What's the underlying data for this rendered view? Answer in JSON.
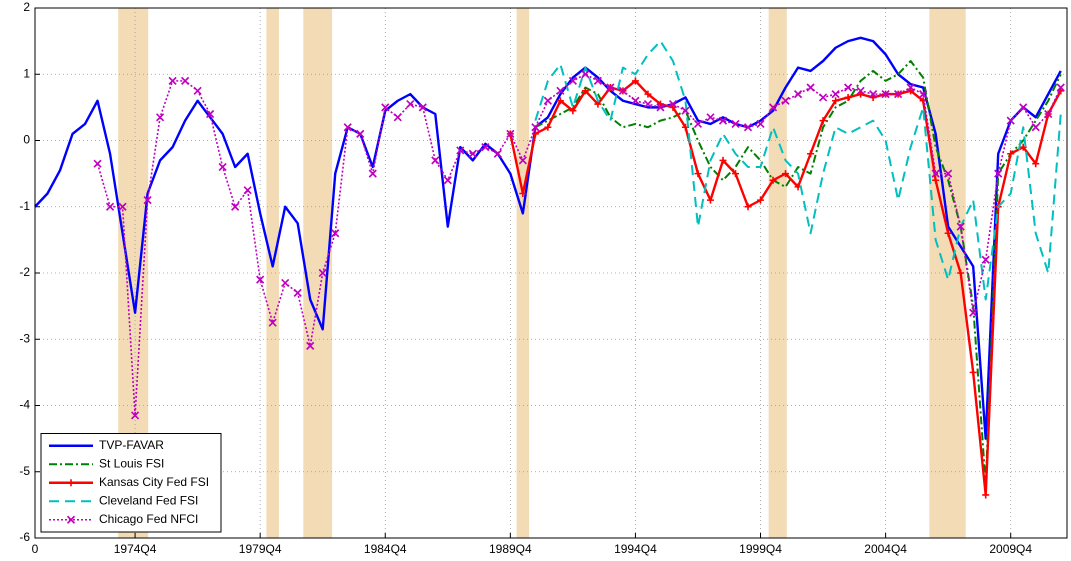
{
  "chart_data": {
    "type": "line",
    "x": [
      0,
      2,
      4,
      6,
      8,
      10,
      12,
      14,
      16,
      18,
      20,
      22,
      24,
      26,
      28,
      30,
      32,
      34,
      36,
      38,
      40,
      42,
      44,
      46,
      48,
      50,
      52,
      54,
      56,
      58,
      60,
      62,
      64,
      66,
      68,
      70,
      72,
      74,
      76,
      78,
      80,
      82,
      84,
      86,
      88,
      90,
      92,
      94,
      96,
      98,
      100,
      102,
      104,
      106,
      108,
      110,
      112,
      114,
      116,
      118,
      120,
      122,
      124,
      126,
      128,
      130,
      132,
      134,
      136,
      138,
      140,
      142,
      144,
      146,
      148,
      150,
      152,
      154,
      156,
      158,
      160,
      162,
      164
    ],
    "series": [
      {
        "name": "TVP-FAVAR",
        "color": "#0000ff",
        "linestyle": "solid",
        "marker": "none",
        "values": [
          -1.0,
          -0.8,
          -0.45,
          0.1,
          0.25,
          0.6,
          -0.2,
          -1.4,
          -2.6,
          -0.8,
          -0.3,
          -0.1,
          0.3,
          0.6,
          0.35,
          0.1,
          -0.4,
          -0.2,
          -1.1,
          -1.9,
          -1.0,
          -1.25,
          -2.4,
          -2.85,
          -0.5,
          0.2,
          0.1,
          -0.4,
          0.45,
          0.6,
          0.7,
          0.5,
          0.4,
          -1.3,
          -0.1,
          -0.3,
          -0.05,
          -0.2,
          -0.5,
          -1.1,
          0.2,
          0.35,
          0.7,
          0.95,
          1.1,
          0.95,
          0.75,
          0.6,
          0.55,
          0.5,
          0.5,
          0.55,
          0.65,
          0.3,
          0.25,
          0.35,
          0.25,
          0.2,
          0.3,
          0.45,
          0.8,
          1.1,
          1.05,
          1.2,
          1.4,
          1.5,
          1.55,
          1.5,
          1.3,
          1.0,
          0.85,
          0.8,
          0.1,
          -1.3,
          -1.6,
          -1.9,
          -4.5,
          -0.2,
          0.3,
          0.5,
          0.35,
          0.7,
          1.05
        ]
      },
      {
        "name": "St Louis FSI",
        "color": "#008000",
        "linestyle": "dashdot",
        "marker": "none",
        "values": [
          null,
          null,
          null,
          null,
          null,
          null,
          null,
          null,
          null,
          null,
          null,
          null,
          null,
          null,
          null,
          null,
          null,
          null,
          null,
          null,
          null,
          null,
          null,
          null,
          null,
          null,
          null,
          null,
          null,
          null,
          null,
          null,
          null,
          null,
          null,
          null,
          null,
          null,
          null,
          null,
          0.2,
          0.3,
          0.4,
          0.5,
          0.8,
          0.7,
          0.35,
          0.2,
          0.25,
          0.2,
          0.3,
          0.35,
          0.45,
          0.0,
          -0.4,
          -0.6,
          -0.4,
          -0.1,
          -0.3,
          -0.6,
          -0.7,
          -0.4,
          -0.5,
          0.2,
          0.5,
          0.6,
          0.9,
          1.05,
          0.9,
          1.0,
          1.2,
          0.95,
          -0.1,
          -0.6,
          -1.3,
          -2.5,
          -5.2,
          -0.5,
          -0.2,
          0.0,
          0.3,
          0.6,
          1.0
        ]
      },
      {
        "name": "Kansas City Fed FSI",
        "color": "#ff0000",
        "linestyle": "solid",
        "marker": "plus",
        "values": [
          null,
          null,
          null,
          null,
          null,
          null,
          null,
          null,
          null,
          null,
          null,
          null,
          null,
          null,
          null,
          null,
          null,
          null,
          null,
          null,
          null,
          null,
          null,
          null,
          null,
          null,
          null,
          null,
          null,
          null,
          null,
          null,
          null,
          null,
          null,
          null,
          null,
          null,
          0.1,
          -0.8,
          0.1,
          0.2,
          0.6,
          0.45,
          0.75,
          0.55,
          0.8,
          0.75,
          0.9,
          0.7,
          0.55,
          0.5,
          0.2,
          -0.5,
          -0.9,
          -0.3,
          -0.5,
          -1.0,
          -0.9,
          -0.6,
          -0.5,
          -0.7,
          -0.2,
          0.3,
          0.6,
          0.65,
          0.7,
          0.65,
          0.7,
          0.7,
          0.75,
          0.6,
          -0.6,
          -1.4,
          -2.0,
          -3.5,
          -5.35,
          -1.0,
          -0.2,
          -0.1,
          -0.35,
          0.4,
          0.75
        ]
      },
      {
        "name": "Cleveland Fed FSI",
        "color": "#00bfbf",
        "linestyle": "dashed",
        "marker": "none",
        "values": [
          null,
          null,
          null,
          null,
          null,
          null,
          null,
          null,
          null,
          null,
          null,
          null,
          null,
          null,
          null,
          null,
          null,
          null,
          null,
          null,
          null,
          null,
          null,
          null,
          null,
          null,
          null,
          null,
          null,
          null,
          null,
          null,
          null,
          null,
          null,
          null,
          null,
          null,
          null,
          null,
          0.3,
          0.9,
          1.15,
          0.5,
          1.1,
          0.6,
          0.3,
          1.1,
          1.0,
          1.3,
          1.5,
          1.2,
          0.6,
          -1.3,
          -0.3,
          0.1,
          -0.2,
          -0.4,
          -0.4,
          0.2,
          -0.3,
          -0.5,
          -1.4,
          -0.5,
          0.2,
          0.1,
          0.2,
          0.3,
          0.0,
          -0.9,
          -0.1,
          0.5,
          -1.5,
          -2.1,
          -1.3,
          -0.9,
          -2.4,
          -1.0,
          -0.8,
          0.2,
          -1.4,
          -2.0,
          0.4
        ]
      },
      {
        "name": "Chicago Fed NFCI",
        "color": "#bf00bf",
        "linestyle": "dotted",
        "marker": "x",
        "values": [
          null,
          null,
          null,
          null,
          null,
          -0.35,
          -1.0,
          -1.0,
          -4.15,
          -0.9,
          0.35,
          0.9,
          0.9,
          0.75,
          0.4,
          -0.4,
          -1.0,
          -0.75,
          -2.1,
          -2.75,
          -2.15,
          -2.3,
          -3.1,
          -2.0,
          -1.4,
          0.2,
          0.1,
          -0.5,
          0.5,
          0.35,
          0.55,
          0.5,
          -0.3,
          -0.6,
          -0.15,
          -0.2,
          -0.1,
          -0.2,
          0.1,
          -0.3,
          0.2,
          0.6,
          0.75,
          0.9,
          1.0,
          0.9,
          0.8,
          0.75,
          0.6,
          0.55,
          0.5,
          0.55,
          0.45,
          0.25,
          0.35,
          0.3,
          0.25,
          0.2,
          0.25,
          0.5,
          0.6,
          0.7,
          0.8,
          0.65,
          0.7,
          0.8,
          0.75,
          0.7,
          0.7,
          0.7,
          0.8,
          0.7,
          -0.5,
          -0.5,
          -1.3,
          -2.6,
          -1.8,
          -0.5,
          0.3,
          0.5,
          0.2,
          0.4,
          0.8
        ]
      }
    ],
    "shaded_regions": [
      [
        13.3,
        18.1
      ],
      [
        37,
        39
      ],
      [
        42.9,
        47.5
      ],
      [
        77,
        79
      ],
      [
        117.3,
        120.2
      ],
      [
        143,
        148.8
      ]
    ],
    "shade_color": "#f2dbb5",
    "xlim": [
      0,
      165
    ],
    "xticks": [
      0,
      {
        "value": 16,
        "label": "1974Q4"
      },
      {
        "value": 36,
        "label": "1979Q4"
      },
      {
        "value": 56,
        "label": "1984Q4"
      },
      {
        "value": 76,
        "label": "1989Q4"
      },
      {
        "value": 96,
        "label": "1994Q4"
      },
      {
        "value": 116,
        "label": "1999Q4"
      },
      {
        "value": 136,
        "label": "2004Q4"
      },
      {
        "value": 156,
        "label": "2009Q4"
      }
    ],
    "ylim": [
      -6,
      2
    ],
    "yticks": [
      -6,
      -5,
      -4,
      -3,
      -2,
      -1,
      0,
      1,
      2
    ],
    "grid": true,
    "legend": "lower left"
  }
}
